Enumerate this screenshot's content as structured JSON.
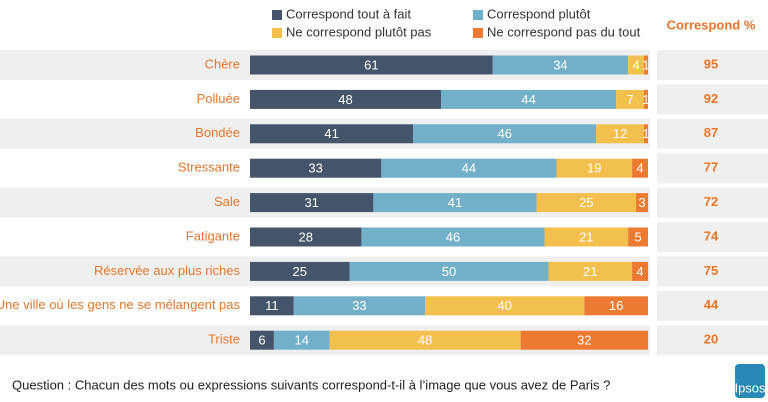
{
  "chart_data": {
    "type": "stacked_barh",
    "categories": [
      "Chère",
      "Polluée",
      "Bondée",
      "Stressante",
      "Sale",
      "Fatigante",
      "Réservée aux plus riches",
      "Une ville où les gens ne se mélangent pas",
      "Triste"
    ],
    "series": [
      {
        "name": "Correspond tout à fait",
        "color": "#44546a",
        "values": [
          61,
          48,
          41,
          33,
          31,
          28,
          25,
          11,
          6
        ]
      },
      {
        "name": "Correspond plutôt",
        "color": "#72b0c9",
        "values": [
          34,
          44,
          46,
          44,
          41,
          46,
          50,
          33,
          14
        ]
      },
      {
        "name": "Ne correspond plutôt pas",
        "color": "#f4c04d",
        "values": [
          4,
          7,
          12,
          19,
          25,
          21,
          21,
          40,
          48
        ]
      },
      {
        "name": "Ne correspond pas du tout",
        "color": "#ec7a30",
        "values": [
          1,
          1,
          1,
          4,
          3,
          5,
          4,
          16,
          32
        ]
      }
    ],
    "xlim": [
      0,
      100
    ],
    "summary": {
      "title": "Correspond %",
      "values": [
        95,
        92,
        87,
        77,
        72,
        74,
        75,
        44,
        20
      ]
    },
    "footnote": "Question : Chacun des mots ou expressions suivants correspond-t-il à l’image que vous avez de Paris ?",
    "logo": "Ipsos"
  }
}
